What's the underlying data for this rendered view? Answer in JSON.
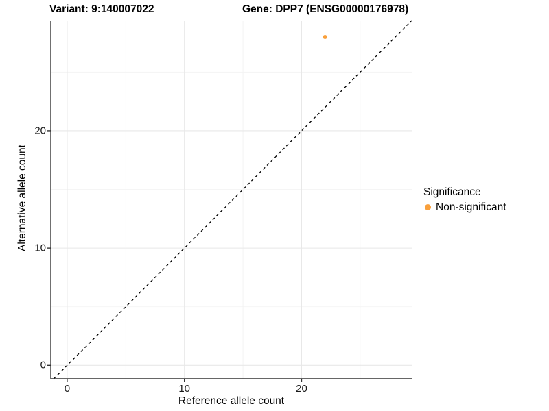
{
  "chart_data": {
    "type": "scatter",
    "title_left": "Variant: 9:140007022",
    "title_right": "Gene: DPP7 (ENSG00000176978)",
    "xlabel": "Reference allele count",
    "ylabel": "Alternative allele count",
    "xlim": [
      -1.4,
      29.4
    ],
    "ylim": [
      -1.15,
      29.4
    ],
    "x_major_ticks": [
      0,
      10,
      20
    ],
    "x_minor_ticks": [
      5,
      15,
      25
    ],
    "y_major_ticks": [
      0,
      10,
      20
    ],
    "y_minor_ticks": [
      5,
      15,
      25
    ],
    "grid": true,
    "series": [
      {
        "name": "Non-significant",
        "color": "#F9A03C",
        "points": [
          {
            "x": 22,
            "y": 28
          }
        ]
      }
    ],
    "reference_line": {
      "type": "identity",
      "style": "dashed",
      "color": "#000000"
    },
    "legend": {
      "title": "Significance",
      "position": "right",
      "items": [
        {
          "label": "Non-significant",
          "color": "#F9A03C"
        }
      ]
    },
    "colors": {
      "grid_major": "#E8E8E8",
      "grid_minor": "#F2F2F2",
      "axis_line": "#333333",
      "tick_text": "#1A1A1A",
      "background": "#FFFFFF"
    }
  }
}
